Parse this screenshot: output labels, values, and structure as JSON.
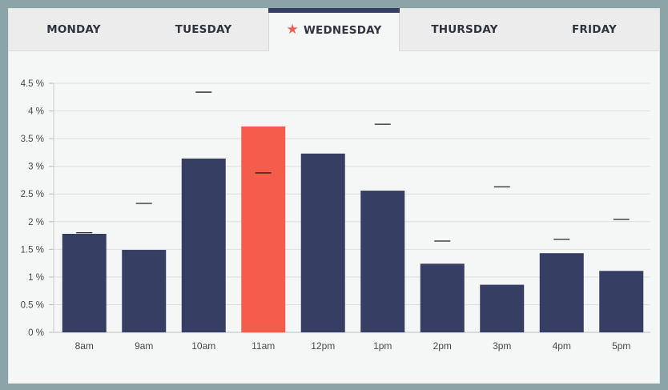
{
  "tabs": [
    {
      "label": "MONDAY"
    },
    {
      "label": "TUESDAY"
    },
    {
      "label": "WEDNESDAY",
      "active": true,
      "icon": "star-icon"
    },
    {
      "label": "THURSDAY"
    },
    {
      "label": "FRIDAY"
    }
  ],
  "colors": {
    "bar": "#363f63",
    "highlight": "#f45d4c",
    "marker": "#222222",
    "grid": "#dcdfe0",
    "tick_text": "#4a4a4a"
  },
  "chart_data": {
    "type": "bar",
    "categories": [
      "8am",
      "9am",
      "10am",
      "11am",
      "12pm",
      "1pm",
      "2pm",
      "3pm",
      "4pm",
      "5pm"
    ],
    "series": [
      {
        "values": [
          1.78,
          1.49,
          3.14,
          3.72,
          3.23,
          2.56,
          1.24,
          0.86,
          1.43,
          1.11
        ]
      },
      {
        "values": [
          1.8,
          2.33,
          4.34,
          2.88,
          null,
          3.76,
          1.65,
          2.63,
          1.68,
          2.04
        ],
        "style": "marker"
      }
    ],
    "highlight_index": 3,
    "ylim": [
      0,
      4.5
    ],
    "yticks": [
      0,
      0.5,
      1,
      1.5,
      2,
      2.5,
      3,
      3.5,
      4,
      4.5
    ],
    "ytick_labels": [
      "0 %",
      "0.5 %",
      "1 %",
      "1.5 %",
      "2 %",
      "2.5 %",
      "3 %",
      "3.5 %",
      "4 %",
      "4.5 %"
    ],
    "grid": true,
    "title": "",
    "xlabel": "",
    "ylabel": ""
  }
}
